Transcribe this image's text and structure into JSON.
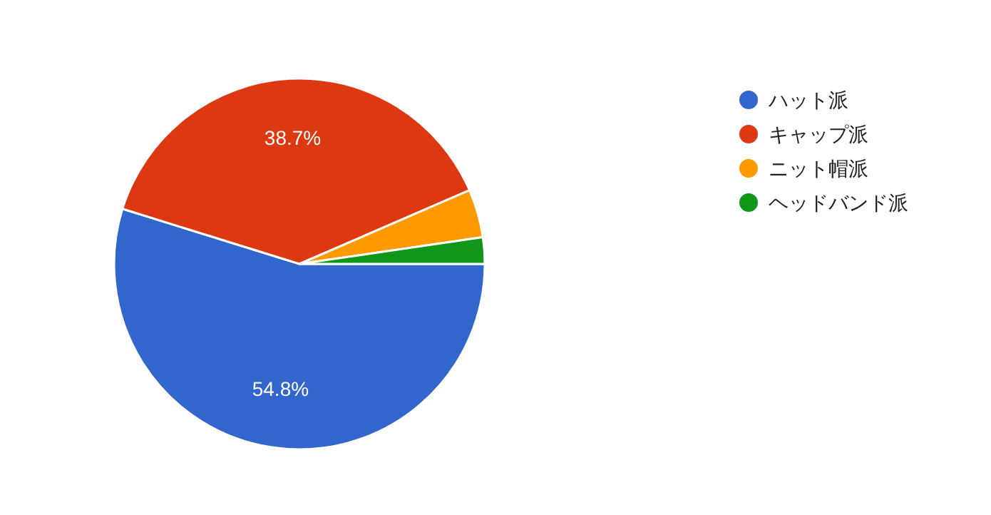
{
  "chart_data": {
    "type": "pie",
    "categories": [
      "ハット派",
      "キャップ派",
      "ニット帽派",
      "ヘッドバンド派"
    ],
    "values": [
      54.8,
      38.7,
      4.2,
      2.3
    ],
    "colors": [
      "#3366cc",
      "#dc3912",
      "#ff9900",
      "#109618"
    ],
    "value_labels": [
      "54.8%",
      "38.7%",
      null,
      null
    ],
    "legend": "right"
  }
}
